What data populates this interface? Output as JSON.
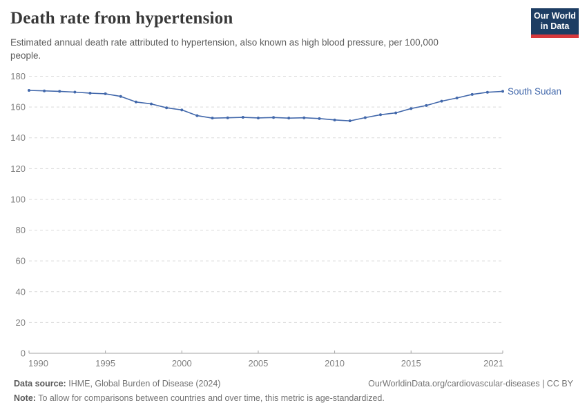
{
  "header": {
    "title": "Death rate from hypertension",
    "subtitle_line1": "Estimated annual death rate attributed to hypertension, also known as high blood pressure, per 100,000",
    "subtitle_line2": "people.",
    "logo_line1": "Our World",
    "logo_line2": "in Data"
  },
  "chart_data": {
    "type": "line",
    "title": "Death rate from hypertension",
    "xlabel": "",
    "ylabel": "",
    "x": [
      1990,
      1991,
      1992,
      1993,
      1994,
      1995,
      1996,
      1997,
      1998,
      1999,
      2000,
      2001,
      2002,
      2003,
      2004,
      2005,
      2006,
      2007,
      2008,
      2009,
      2010,
      2011,
      2012,
      2013,
      2014,
      2015,
      2016,
      2017,
      2018,
      2019,
      2020,
      2021
    ],
    "series": [
      {
        "name": "South Sudan",
        "values": [
          170.8,
          170.5,
          170.2,
          169.7,
          169.0,
          168.6,
          166.9,
          163.3,
          162.0,
          159.5,
          158.1,
          154.4,
          152.8,
          153.0,
          153.3,
          152.9,
          153.2,
          152.8,
          153.0,
          152.5,
          151.6,
          151.0,
          153.1,
          155.0,
          156.2,
          159.0,
          161.0,
          163.8,
          165.9,
          168.2,
          169.6,
          170.2
        ],
        "color": "#4268ab"
      }
    ],
    "ylim": [
      0,
      180
    ],
    "yticks": [
      0,
      20,
      40,
      60,
      80,
      100,
      120,
      140,
      160,
      180
    ],
    "xticks": [
      1990,
      1995,
      2000,
      2005,
      2010,
      2015,
      2021
    ],
    "grid": true,
    "legend_position": "end-of-line-label",
    "colors": {
      "grid": "#d9d9d9",
      "axis": "#a3a3a3",
      "tick_label": "#808080"
    }
  },
  "footer": {
    "source_label": "Data source:",
    "source_text": "IHME, Global Burden of Disease (2024)",
    "link": "OurWorldinData.org/cardiovascular-diseases | CC BY",
    "note_label": "Note:",
    "note_text": "To allow for comparisons between countries and over time, this metric is age-standardized."
  }
}
